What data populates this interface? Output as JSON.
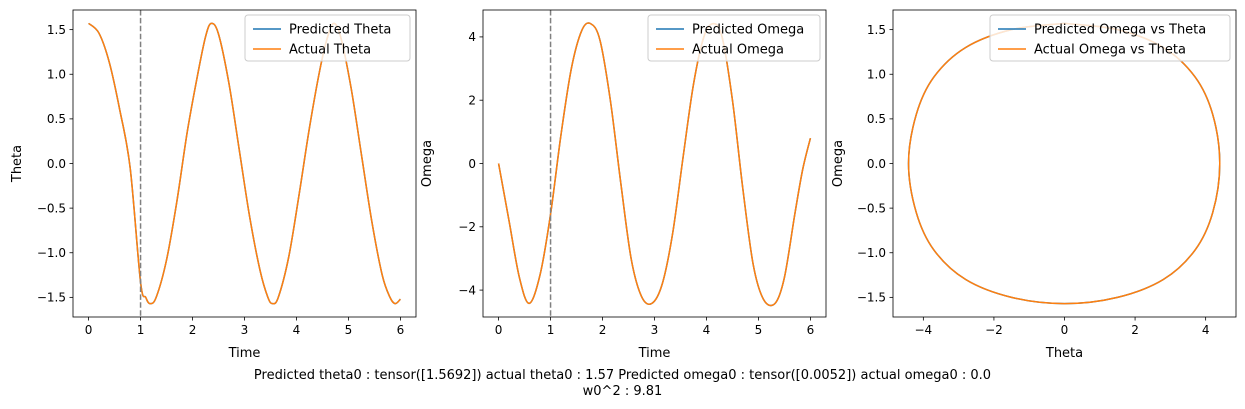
{
  "colors": {
    "predicted": "#1f77b4",
    "actual": "#ff7f0e",
    "vline": "#808080"
  },
  "caption": {
    "line1": "Predicted theta0 : tensor([1.5692]) actual theta0 : 1.57 Predicted omega0 : tensor([0.0052]) actual omega0 : 0.0",
    "line2": "w0^2 : 9.81"
  },
  "chart_data": [
    {
      "type": "line",
      "xlabel": "Time",
      "ylabel": "Theta",
      "xlim": [
        -0.3,
        6.3
      ],
      "ylim": [
        -1.72,
        1.72
      ],
      "xticks": [
        0,
        1,
        2,
        3,
        4,
        5,
        6
      ],
      "xtick_labels": [
        "0",
        "1",
        "2",
        "3",
        "4",
        "5",
        "6"
      ],
      "yticks": [
        1.5,
        1.0,
        0.5,
        0.0,
        -0.5,
        -1.0,
        -1.5
      ],
      "ytick_labels": [
        "1.5",
        "1.0",
        "0.5",
        "0.0",
        "−0.5",
        "−1.0",
        "−1.5"
      ],
      "vline_x": 1,
      "legend_loc": "upper right",
      "series": [
        {
          "name": "Predicted Theta",
          "color_key": "predicted",
          "x": [
            0,
            0.2,
            0.4,
            0.6,
            0.8,
            1.0,
            1.1,
            1.18,
            1.3,
            1.5,
            1.7,
            1.9,
            2.1,
            2.25,
            2.36,
            2.5,
            2.7,
            2.9,
            3.1,
            3.3,
            3.45,
            3.54,
            3.65,
            3.85,
            4.05,
            4.25,
            4.45,
            4.6,
            4.72,
            4.85,
            5.05,
            5.25,
            5.45,
            5.65,
            5.8,
            5.9,
            6.0
          ],
          "y": [
            1.57,
            1.46,
            1.13,
            0.6,
            -0.05,
            -1.33,
            -1.5,
            -1.57,
            -1.5,
            -1.08,
            -0.42,
            0.36,
            1.0,
            1.42,
            1.57,
            1.45,
            0.9,
            0.15,
            -0.6,
            -1.2,
            -1.5,
            -1.57,
            -1.5,
            -1.05,
            -0.35,
            0.4,
            1.05,
            1.42,
            1.57,
            1.42,
            0.85,
            0.1,
            -0.65,
            -1.25,
            -1.5,
            -1.57,
            -1.52
          ]
        },
        {
          "name": "Actual Theta",
          "color_key": "actual",
          "x": [
            0,
            0.2,
            0.4,
            0.6,
            0.8,
            1.0,
            1.1,
            1.18,
            1.3,
            1.5,
            1.7,
            1.9,
            2.1,
            2.25,
            2.36,
            2.5,
            2.7,
            2.9,
            3.1,
            3.3,
            3.45,
            3.54,
            3.65,
            3.85,
            4.05,
            4.25,
            4.45,
            4.6,
            4.72,
            4.85,
            5.05,
            5.25,
            5.45,
            5.65,
            5.8,
            5.9,
            6.0
          ],
          "y": [
            1.57,
            1.46,
            1.13,
            0.6,
            -0.05,
            -1.33,
            -1.5,
            -1.57,
            -1.5,
            -1.08,
            -0.42,
            0.36,
            1.0,
            1.42,
            1.57,
            1.45,
            0.9,
            0.15,
            -0.6,
            -1.2,
            -1.5,
            -1.57,
            -1.5,
            -1.05,
            -0.35,
            0.4,
            1.05,
            1.42,
            1.57,
            1.42,
            0.85,
            0.1,
            -0.65,
            -1.25,
            -1.5,
            -1.57,
            -1.52
          ]
        }
      ]
    },
    {
      "type": "line",
      "xlabel": "Time",
      "ylabel": "Omega",
      "xlim": [
        -0.3,
        6.3
      ],
      "ylim": [
        -4.85,
        4.85
      ],
      "xticks": [
        0,
        1,
        2,
        3,
        4,
        5,
        6
      ],
      "xtick_labels": [
        "0",
        "1",
        "2",
        "3",
        "4",
        "5",
        "6"
      ],
      "yticks": [
        4,
        2,
        0,
        -2,
        -4
      ],
      "ytick_labels": [
        "4",
        "2",
        "0",
        "−2",
        "−4"
      ],
      "vline_x": 1,
      "legend_loc": "upper right",
      "series": [
        {
          "name": "Predicted Omega",
          "color_key": "predicted",
          "x": [
            0,
            0.2,
            0.4,
            0.59,
            0.8,
            1.0,
            1.2,
            1.4,
            1.6,
            1.77,
            1.95,
            2.15,
            2.35,
            2.55,
            2.75,
            2.95,
            3.15,
            3.35,
            3.55,
            3.75,
            3.95,
            4.13,
            4.3,
            4.5,
            4.7,
            4.9,
            5.1,
            5.32,
            5.5,
            5.7,
            5.85,
            6.0
          ],
          "y": [
            0.0,
            -1.8,
            -3.6,
            -4.42,
            -3.5,
            -1.6,
            0.9,
            3.0,
            4.2,
            4.42,
            3.9,
            2.0,
            -0.6,
            -3.0,
            -4.2,
            -4.42,
            -3.8,
            -2.2,
            0.2,
            2.5,
            4.0,
            4.42,
            4.0,
            2.0,
            -0.8,
            -3.2,
            -4.3,
            -4.42,
            -3.6,
            -1.6,
            -0.2,
            0.8
          ]
        },
        {
          "name": "Actual Omega",
          "color_key": "actual",
          "x": [
            0,
            0.2,
            0.4,
            0.59,
            0.8,
            1.0,
            1.2,
            1.4,
            1.6,
            1.77,
            1.95,
            2.15,
            2.35,
            2.55,
            2.75,
            2.95,
            3.15,
            3.35,
            3.55,
            3.75,
            3.95,
            4.13,
            4.3,
            4.5,
            4.7,
            4.9,
            5.1,
            5.32,
            5.5,
            5.7,
            5.85,
            6.0
          ],
          "y": [
            0.0,
            -1.8,
            -3.6,
            -4.42,
            -3.5,
            -1.6,
            0.9,
            3.0,
            4.2,
            4.42,
            3.9,
            2.0,
            -0.6,
            -3.0,
            -4.2,
            -4.42,
            -3.8,
            -2.2,
            0.2,
            2.5,
            4.0,
            4.42,
            4.0,
            2.0,
            -0.8,
            -3.2,
            -4.3,
            -4.42,
            -3.6,
            -1.6,
            -0.2,
            0.8
          ]
        }
      ]
    },
    {
      "type": "line",
      "xlabel": "Theta",
      "ylabel": "Omega",
      "xlim": [
        -4.86,
        4.86
      ],
      "ylim": [
        -1.72,
        1.72
      ],
      "xticks": [
        -4,
        -2,
        0,
        2,
        4
      ],
      "xtick_labels": [
        "−4",
        "−2",
        "0",
        "2",
        "4"
      ],
      "yticks": [
        1.5,
        1.0,
        0.5,
        0.0,
        -0.5,
        -1.0,
        -1.5
      ],
      "ytick_labels": [
        "1.5",
        "1.0",
        "0.5",
        "0.0",
        "−0.5",
        "−1.0",
        "−1.5"
      ],
      "legend_loc": "upper right",
      "series": [
        {
          "name": "Predicted Omega vs Theta",
          "color_key": "predicted",
          "x": [
            0,
            1.5,
            2.8,
            3.7,
            4.2,
            4.4,
            4.2,
            3.7,
            2.8,
            1.5,
            0,
            -1.5,
            -2.8,
            -3.7,
            -4.2,
            -4.42,
            -4.2,
            -3.7,
            -2.8,
            -1.5,
            0
          ],
          "y": [
            1.57,
            1.5,
            1.3,
            0.97,
            0.55,
            0.0,
            -0.55,
            -0.97,
            -1.3,
            -1.5,
            -1.57,
            -1.5,
            -1.3,
            -0.97,
            -0.55,
            0.0,
            0.55,
            0.97,
            1.3,
            1.5,
            1.57
          ]
        },
        {
          "name": "Actual Omega vs Theta",
          "color_key": "actual",
          "x": [
            0,
            1.5,
            2.8,
            3.7,
            4.2,
            4.4,
            4.2,
            3.7,
            2.8,
            1.5,
            0,
            -1.5,
            -2.8,
            -3.7,
            -4.2,
            -4.42,
            -4.2,
            -3.7,
            -2.8,
            -1.5,
            0
          ],
          "y": [
            1.57,
            1.5,
            1.3,
            0.97,
            0.55,
            0.0,
            -0.55,
            -0.97,
            -1.3,
            -1.5,
            -1.57,
            -1.5,
            -1.3,
            -0.97,
            -0.55,
            0.0,
            0.55,
            0.97,
            1.3,
            1.5,
            1.57
          ]
        }
      ]
    }
  ]
}
